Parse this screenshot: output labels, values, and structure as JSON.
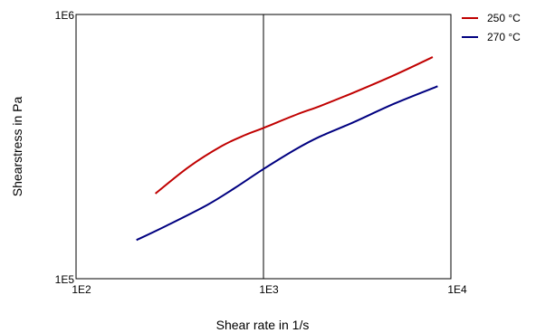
{
  "chart_data": {
    "type": "line",
    "xlabel": "Shear rate in 1/s",
    "ylabel": "Shearstress in Pa",
    "xscale": "log",
    "yscale": "log",
    "xlim": [
      100,
      10000
    ],
    "ylim": [
      100000,
      1000000
    ],
    "x_ticks": [
      "1E2",
      "1E3",
      "1E4"
    ],
    "y_ticks": [
      "1E5",
      "1E6"
    ],
    "grid": "vertical line at 1E3",
    "legend_position": "top-right",
    "series": [
      {
        "name": "250 °C",
        "color": "#c00000",
        "points": [
          [
            265,
            210000
          ],
          [
            400,
            265000
          ],
          [
            600,
            318000
          ],
          [
            800,
            350000
          ],
          [
            1000,
            372000
          ],
          [
            1500,
            418000
          ],
          [
            2000,
            450000
          ],
          [
            3000,
            505000
          ],
          [
            5000,
            590000
          ],
          [
            8000,
            690000
          ]
        ]
      },
      {
        "name": "270 °C",
        "color": "#000080",
        "points": [
          [
            210,
            140000
          ],
          [
            300,
            158000
          ],
          [
            500,
            190000
          ],
          [
            700,
            220000
          ],
          [
            1000,
            260000
          ],
          [
            1500,
            310000
          ],
          [
            2000,
            345000
          ],
          [
            3000,
            390000
          ],
          [
            5000,
            460000
          ],
          [
            8500,
            535000
          ]
        ]
      }
    ]
  }
}
